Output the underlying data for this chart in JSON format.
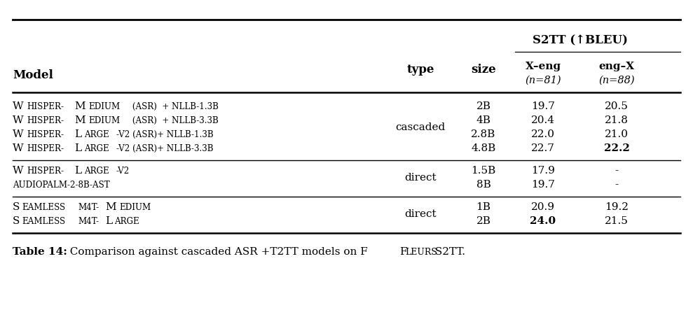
{
  "header_group": "S2TT (↑BLEU)",
  "col_headers": [
    "Model",
    "type",
    "size",
    "X–eng",
    "eng–X"
  ],
  "subheaders": [
    "",
    "",
    "",
    "(n=81)",
    "(n=88)"
  ],
  "rows": [
    {
      "model_parts": [
        [
          "W",
          true
        ],
        [
          "HISPER-",
          false
        ],
        [
          "M",
          true
        ],
        [
          "EDIUM",
          false
        ],
        [
          " (ASR)  + NLLB-1.3B",
          false
        ]
      ],
      "type": "cascaded",
      "size": "2B",
      "xeng": "19.7",
      "engx": "20.5",
      "xeng_bold": false,
      "engx_bold": false,
      "group": 0
    },
    {
      "model_parts": [
        [
          "W",
          true
        ],
        [
          "HISPER-",
          false
        ],
        [
          "M",
          true
        ],
        [
          "EDIUM",
          false
        ],
        [
          " (ASR)  + NLLB-3.3B",
          false
        ]
      ],
      "type": "cascaded",
      "size": "4B",
      "xeng": "20.4",
      "engx": "21.8",
      "xeng_bold": false,
      "engx_bold": false,
      "group": 0
    },
    {
      "model_parts": [
        [
          "W",
          true
        ],
        [
          "HISPER-",
          false
        ],
        [
          "L",
          true
        ],
        [
          "ARGE",
          false
        ],
        [
          "-v2 (ASR)+ NLLB-1.3B",
          false
        ]
      ],
      "type": "cascaded",
      "size": "2.8B",
      "xeng": "22.0",
      "engx": "21.0",
      "xeng_bold": false,
      "engx_bold": false,
      "group": 0
    },
    {
      "model_parts": [
        [
          "W",
          true
        ],
        [
          "HISPER-",
          false
        ],
        [
          "L",
          true
        ],
        [
          "ARGE",
          false
        ],
        [
          "-v2 (ASR)+ NLLB-3.3B",
          false
        ]
      ],
      "type": "cascaded",
      "size": "4.8B",
      "xeng": "22.7",
      "engx": "22.2",
      "xeng_bold": false,
      "engx_bold": true,
      "group": 0
    },
    {
      "model_parts": [
        [
          "W",
          true
        ],
        [
          "HISPER-",
          false
        ],
        [
          "L",
          true
        ],
        [
          "ARGE",
          false
        ],
        [
          "-v2",
          false
        ]
      ],
      "type": "direct",
      "size": "1.5B",
      "xeng": "17.9",
      "engx": "-",
      "xeng_bold": false,
      "engx_bold": false,
      "group": 1
    },
    {
      "model_parts": [
        [
          "AudioPaLM-2-8B-AST",
          false
        ]
      ],
      "type": "direct",
      "size": "8B",
      "xeng": "19.7",
      "engx": "-",
      "xeng_bold": false,
      "engx_bold": false,
      "group": 1
    },
    {
      "model_parts": [
        [
          "S",
          true
        ],
        [
          "EAMLESS",
          false
        ],
        [
          "M4T-",
          false
        ],
        [
          "M",
          true
        ],
        [
          "EDIUM",
          false
        ]
      ],
      "type": "direct",
      "size": "1B",
      "xeng": "20.9",
      "engx": "19.2",
      "xeng_bold": false,
      "engx_bold": false,
      "group": 2
    },
    {
      "model_parts": [
        [
          "S",
          true
        ],
        [
          "EAMLESS",
          false
        ],
        [
          "M4T-",
          false
        ],
        [
          "L",
          true
        ],
        [
          "ARGE",
          false
        ]
      ],
      "type": "direct",
      "size": "2B",
      "xeng": "24.0",
      "engx": "21.5",
      "xeng_bold": true,
      "engx_bold": false,
      "group": 2
    }
  ],
  "bg_color": "#ffffff",
  "text_color": "#000000",
  "line_color": "#000000",
  "title_bold": "Table 14:",
  "title_rest": "  Comparison against cascaded ASR +T2TT models on F",
  "title_fleurs": "LEURS",
  "title_end": " S2TT."
}
